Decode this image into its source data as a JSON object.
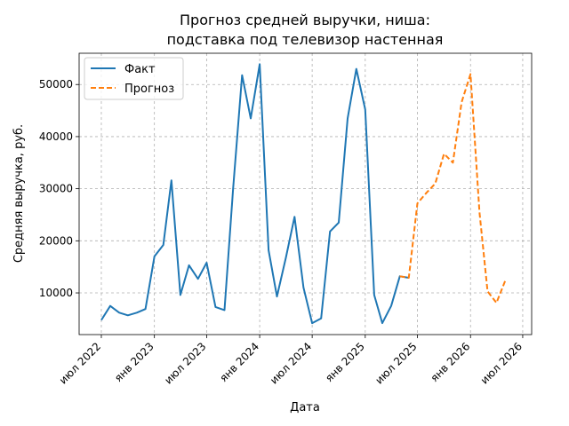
{
  "chart_data": {
    "type": "line",
    "title_lines": [
      "Прогноз средней выручки, ниша:",
      "подставка под телевизор настенная"
    ],
    "xlabel": "Дата",
    "ylabel": "Средняя выручка, руб.",
    "xlim": [
      "2022-04-15",
      "2026-08-01"
    ],
    "ylim": [
      2000,
      56000
    ],
    "grid": true,
    "legend_position": "top-left",
    "x_ticks": [
      {
        "date": "2022-07-01",
        "label": "июл 2022"
      },
      {
        "date": "2023-01-01",
        "label": "янв 2023"
      },
      {
        "date": "2023-07-01",
        "label": "июл 2023"
      },
      {
        "date": "2024-01-01",
        "label": "янв 2024"
      },
      {
        "date": "2024-07-01",
        "label": "июл 2024"
      },
      {
        "date": "2025-01-01",
        "label": "янв 2025"
      },
      {
        "date": "2025-07-01",
        "label": "июл 2025"
      },
      {
        "date": "2026-01-01",
        "label": "янв 2026"
      },
      {
        "date": "2026-07-01",
        "label": "июл 2026"
      }
    ],
    "y_ticks": [
      {
        "value": 10000,
        "label": "10000"
      },
      {
        "value": 20000,
        "label": "20000"
      },
      {
        "value": 30000,
        "label": "30000"
      },
      {
        "value": 40000,
        "label": "40000"
      },
      {
        "value": 50000,
        "label": "50000"
      }
    ],
    "series": [
      {
        "name": "Факт",
        "color": "#1f77b4",
        "style": "solid",
        "x": [
          "2022-07-01",
          "2022-08-01",
          "2022-09-01",
          "2022-10-01",
          "2022-11-01",
          "2022-12-01",
          "2023-01-01",
          "2023-02-01",
          "2023-03-01",
          "2023-04-01",
          "2023-05-01",
          "2023-06-01",
          "2023-07-01",
          "2023-08-01",
          "2023-09-01",
          "2023-10-01",
          "2023-11-01",
          "2023-12-01",
          "2024-01-01",
          "2024-02-01",
          "2024-03-01",
          "2024-04-01",
          "2024-05-01",
          "2024-06-01",
          "2024-07-01",
          "2024-08-01",
          "2024-09-01",
          "2024-10-01",
          "2024-11-01",
          "2024-12-01",
          "2025-01-01",
          "2025-02-01",
          "2025-03-01",
          "2025-04-01",
          "2025-05-01",
          "2025-06-01"
        ],
        "values": [
          4800,
          7500,
          6200,
          5700,
          6200,
          6900,
          17000,
          19200,
          31600,
          9600,
          15300,
          12700,
          15800,
          7300,
          6700,
          30000,
          51800,
          43500,
          53900,
          18200,
          9300,
          16800,
          24600,
          11000,
          4200,
          5100,
          21800,
          23500,
          43500,
          53000,
          45200,
          9600,
          4200,
          7500,
          13200,
          12900
        ]
      },
      {
        "name": "Прогноз",
        "color": "#ff7f0e",
        "style": "dashed",
        "x": [
          "2025-05-01",
          "2025-06-01",
          "2025-07-01",
          "2025-08-01",
          "2025-09-01",
          "2025-10-01",
          "2025-11-01",
          "2025-12-01",
          "2026-01-01",
          "2026-02-01",
          "2026-03-01",
          "2026-04-01",
          "2026-05-01",
          "2026-06-01"
        ],
        "values": [
          13200,
          12900,
          27200,
          29200,
          31000,
          36700,
          35000,
          46600,
          52000,
          25500,
          10300,
          8100,
          12300,
          null
        ]
      }
    ]
  }
}
